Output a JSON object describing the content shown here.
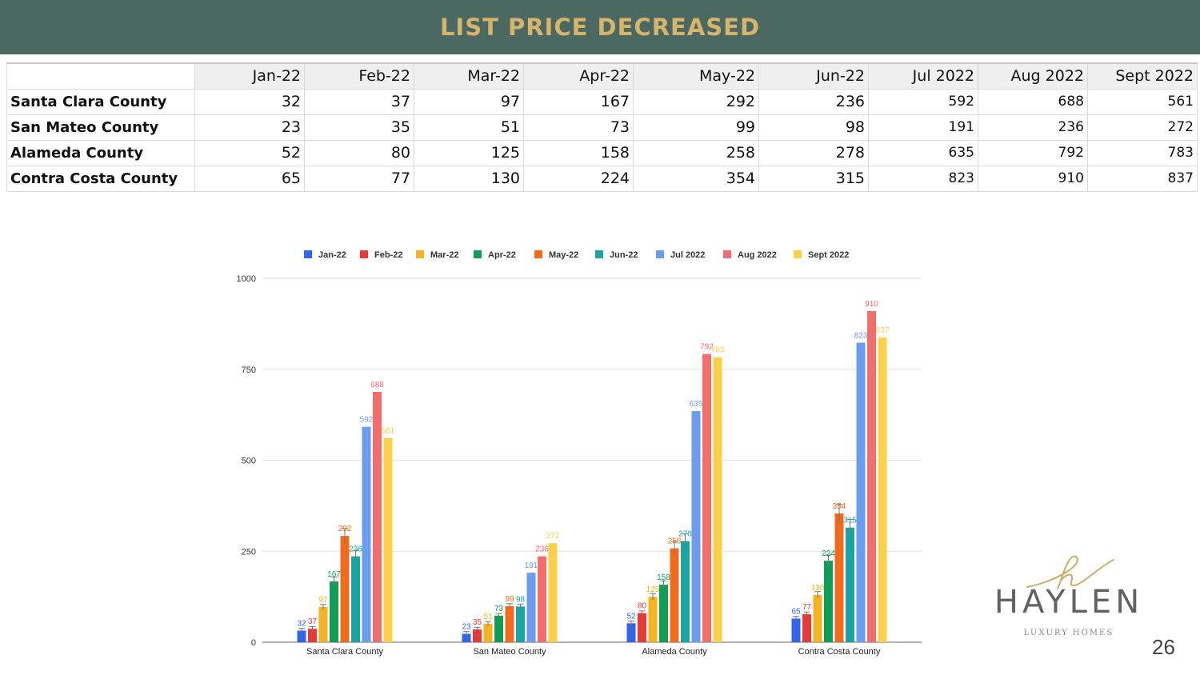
{
  "header": {
    "title": "LIST PRICE DECREASED"
  },
  "table": {
    "columns": [
      "Jan-22",
      "Feb-22",
      "Mar-22",
      "Apr-22",
      "May-22",
      "Jun-22",
      "Jul 2022",
      "Aug 2022",
      "Sept 2022"
    ],
    "rows": [
      {
        "label": "Santa Clara County",
        "values": [
          "32",
          "37",
          "97",
          "167",
          "292",
          "236",
          "592",
          "688",
          "561"
        ]
      },
      {
        "label": "San Mateo County",
        "values": [
          "23",
          "35",
          "51",
          "73",
          "99",
          "98",
          "191",
          "236",
          "272"
        ]
      },
      {
        "label": "Alameda County",
        "values": [
          "52",
          "80",
          "125",
          "158",
          "258",
          "278",
          "635",
          "792",
          "783"
        ]
      },
      {
        "label": "Contra Costa County",
        "values": [
          "65",
          "77",
          "130",
          "224",
          "354",
          "315",
          "823",
          "910",
          "837"
        ]
      }
    ]
  },
  "chart_data": {
    "type": "bar",
    "categories": [
      "Santa Clara County",
      "San Mateo County",
      "Alameda County",
      "Contra Costa County"
    ],
    "series": [
      {
        "name": "Jan-22",
        "color": "#3366e6",
        "values": [
          32,
          23,
          52,
          65
        ]
      },
      {
        "name": "Feb-22",
        "color": "#e63a3a",
        "values": [
          37,
          35,
          80,
          77
        ]
      },
      {
        "name": "Mar-22",
        "color": "#f5b324",
        "values": [
          97,
          51,
          125,
          130
        ]
      },
      {
        "name": "Apr-22",
        "color": "#0f9d58",
        "values": [
          167,
          73,
          158,
          224
        ]
      },
      {
        "name": "May-22",
        "color": "#f26b1d",
        "values": [
          292,
          99,
          258,
          354
        ]
      },
      {
        "name": "Jun-22",
        "color": "#1aa5a5",
        "values": [
          236,
          98,
          278,
          315
        ]
      },
      {
        "name": "Jul 2022",
        "color": "#6b9cf0",
        "values": [
          592,
          191,
          635,
          823
        ]
      },
      {
        "name": "Aug 2022",
        "color": "#f26d6d",
        "values": [
          688,
          236,
          792,
          910
        ]
      },
      {
        "name": "Sept 2022",
        "color": "#fbd04a",
        "values": [
          561,
          272,
          783,
          837
        ]
      }
    ],
    "yticks": [
      "0",
      "250",
      "500",
      "750",
      "1000"
    ],
    "ylim": [
      0,
      1000
    ],
    "grid": true,
    "legend_position": "top",
    "title": "",
    "xlabel": "",
    "ylabel": ""
  },
  "logo": {
    "name": "HAYLEN",
    "tagline": "LUXURY HOMES"
  },
  "page_number": "26"
}
